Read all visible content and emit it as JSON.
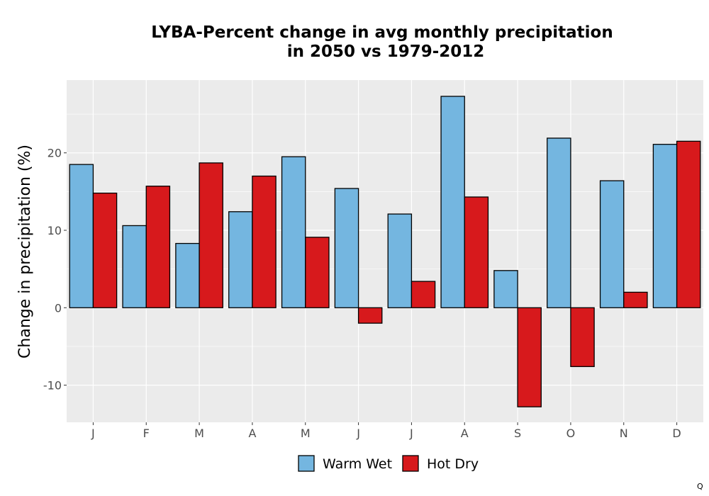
{
  "chart_data": {
    "type": "bar",
    "title_lines": [
      "LYBA-Percent change in avg monthly precipitation",
      "in 2050 vs 1979-2012"
    ],
    "xlabel": "",
    "ylabel": "Change in precipitation (%)",
    "categories": [
      "J",
      "F",
      "M",
      "A",
      "M",
      "J",
      "J",
      "A",
      "S",
      "O",
      "N",
      "D"
    ],
    "series": [
      {
        "name": "Warm Wet",
        "color": "#74b6e0",
        "values": [
          18.5,
          10.6,
          8.3,
          12.4,
          19.5,
          15.4,
          12.1,
          27.3,
          4.8,
          21.9,
          16.4,
          21.1
        ]
      },
      {
        "name": "Hot Dry",
        "color": "#d7191c",
        "values": [
          14.8,
          15.7,
          18.7,
          17.0,
          9.1,
          -2.0,
          3.4,
          14.3,
          -12.8,
          -7.6,
          2.0,
          21.5
        ]
      }
    ],
    "ylim": [
      -14.8,
      29.4
    ],
    "yticks": [
      -10,
      0,
      10,
      20
    ],
    "grid": true,
    "legend_position": "bottom",
    "panel_color": "#ebebeb"
  },
  "corner_mark": "Q"
}
